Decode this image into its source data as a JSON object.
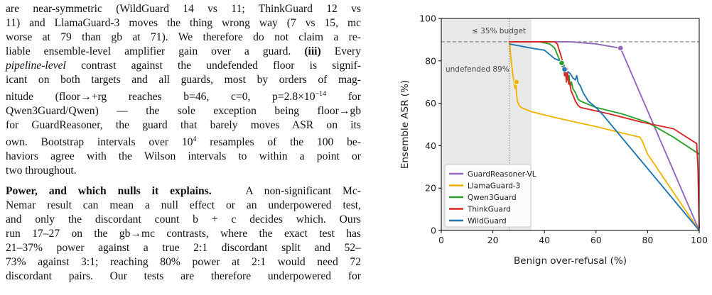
{
  "text": {
    "lines": [
      "are near-symmetric (WildGuard 14 vs 11; ThinkGuard 12 vs",
      "11) and LlamaGuard-3 moves the thing wrong way (7 vs 15, mc",
      "worse at 79 than gb at 71). We therefore do not claim a re-",
      "liable ensemble-level amplifier gain over a guard.",
      "(iii)",
      "Every",
      "pipeline-level",
      "contrast against the undefended floor is signif-",
      "icant on both targets and all guards, most by orders of mag-",
      "nitude (floor→+rg reaches b=46, c=0, p=2.8×10",
      "−14",
      "for",
      "Qwen3Guard/Qwen) — the sole exception being floor→gb",
      "for GuardReasoner, the guard that barely moves ASR on its",
      "own. Bootstrap intervals over 10",
      "4",
      "resamples of the 100 be-",
      "haviors agree with the Wilson intervals to within a point or",
      "two throughout."
    ],
    "heading": "Power, and which nulls it explains.",
    "p2_lines": [
      "A non-significant Mc-",
      "Nemar result can mean a null effect or an underpowered test,",
      "and only the discordant count b + c decides which. Ours",
      "run 17–27 on the gb→mc contrasts, where the exact test has",
      "21–37% power against a true 2:1 discordant split and 52–",
      "73% against 3:1; reaching 80% power at 2:1 would need 72",
      "discordant pairs. Our tests are therefore underpowered for"
    ]
  },
  "chart_data": {
    "type": "line",
    "xlabel": "Benign over-refusal (%)",
    "ylabel": "Ensemble ASR (%)",
    "xlim": [
      0,
      100
    ],
    "ylim": [
      0,
      100
    ],
    "xticks": [
      "0",
      "20",
      "40",
      "60",
      "80",
      "100"
    ],
    "yticks": [
      "0",
      "20",
      "40",
      "60",
      "80",
      "100"
    ],
    "budget_label": "≤ 35% budget",
    "budget_x": 35,
    "undefended_label": "undefended 89%",
    "undefended_y": 89,
    "vline_x": 26.3,
    "legend_position": "lower-left",
    "series": [
      {
        "name": "GuardReasoner-VL",
        "color": "#9467bd",
        "points": [
          [
            26.3,
            89
          ],
          [
            40,
            89
          ],
          [
            50,
            89
          ],
          [
            60,
            88
          ],
          [
            69.5,
            86
          ],
          [
            100,
            0
          ]
        ],
        "marker": [
          69.5,
          86
        ]
      },
      {
        "name": "LlamaGuard-3",
        "color": "#f0b400",
        "points": [
          [
            26.3,
            89
          ],
          [
            26.6,
            87
          ],
          [
            26.8,
            84
          ],
          [
            27.0,
            82
          ],
          [
            27.2,
            79
          ],
          [
            27.4,
            77
          ],
          [
            27.6,
            75
          ],
          [
            27.8,
            73
          ],
          [
            28.1,
            71
          ],
          [
            28.3,
            69
          ],
          [
            28.6,
            67
          ],
          [
            28.9,
            70
          ],
          [
            29.2,
            64
          ],
          [
            29.5,
            61
          ],
          [
            30.2,
            59
          ],
          [
            31,
            58
          ],
          [
            35,
            56
          ],
          [
            45,
            53
          ],
          [
            60,
            49
          ],
          [
            70,
            46
          ],
          [
            77,
            44
          ],
          [
            78,
            42
          ],
          [
            80,
            36
          ],
          [
            100,
            0
          ]
        ],
        "marker": [
          29.2,
          70
        ]
      },
      {
        "name": "Qwen3Guard",
        "color": "#2ca02c",
        "points": [
          [
            26.3,
            89
          ],
          [
            38,
            89
          ],
          [
            42,
            88
          ],
          [
            44,
            86
          ],
          [
            45,
            83
          ],
          [
            46,
            80
          ],
          [
            47,
            77
          ],
          [
            47.5,
            79
          ],
          [
            48,
            74
          ],
          [
            48.5,
            77
          ],
          [
            49,
            71
          ],
          [
            49.5,
            73
          ],
          [
            50,
            68
          ],
          [
            50.5,
            70
          ],
          [
            51,
            67
          ],
          [
            52,
            65
          ],
          [
            53,
            62
          ],
          [
            54,
            61
          ],
          [
            60,
            58
          ],
          [
            70,
            55
          ],
          [
            80,
            51
          ],
          [
            90,
            44
          ],
          [
            100,
            36
          ]
        ],
        "marker": [
          46.7,
          79
        ]
      },
      {
        "name": "ThinkGuard",
        "color": "#d62728",
        "points": [
          [
            26.3,
            89
          ],
          [
            44,
            89
          ],
          [
            45,
            88
          ],
          [
            46,
            84
          ],
          [
            47,
            80
          ],
          [
            47.5,
            77
          ],
          [
            47.8,
            73
          ],
          [
            48.1,
            76
          ],
          [
            48.5,
            70
          ],
          [
            48.9,
            75
          ],
          [
            49.4,
            69
          ],
          [
            49.8,
            70
          ],
          [
            50.3,
            66
          ],
          [
            51,
            64
          ],
          [
            52,
            61
          ],
          [
            53,
            59
          ],
          [
            54,
            58
          ],
          [
            65,
            55
          ],
          [
            78,
            51
          ],
          [
            90,
            48
          ],
          [
            99,
            41
          ],
          [
            99.5,
            30
          ],
          [
            100,
            1
          ]
        ],
        "marker": [
          48.2,
          76
        ]
      },
      {
        "name": "WildGuard",
        "color": "#1f77b4",
        "points": [
          [
            26.3,
            88
          ],
          [
            35,
            86
          ],
          [
            40,
            85
          ],
          [
            42,
            83
          ],
          [
            44,
            81
          ],
          [
            46,
            80
          ],
          [
            47,
            78
          ],
          [
            48,
            76
          ],
          [
            50,
            74
          ],
          [
            51,
            72
          ],
          [
            52,
            71
          ],
          [
            52.5,
            73
          ],
          [
            53,
            70
          ],
          [
            54,
            68
          ],
          [
            55,
            65
          ],
          [
            56,
            63
          ],
          [
            57,
            61
          ],
          [
            60,
            58
          ],
          [
            63,
            54
          ],
          [
            100,
            0
          ]
        ],
        "marker": [
          47.8,
          76
        ]
      }
    ]
  },
  "colors": {
    "budget_fill": "#e8e8e8",
    "dashed": "#888888",
    "axis": "#000000"
  }
}
